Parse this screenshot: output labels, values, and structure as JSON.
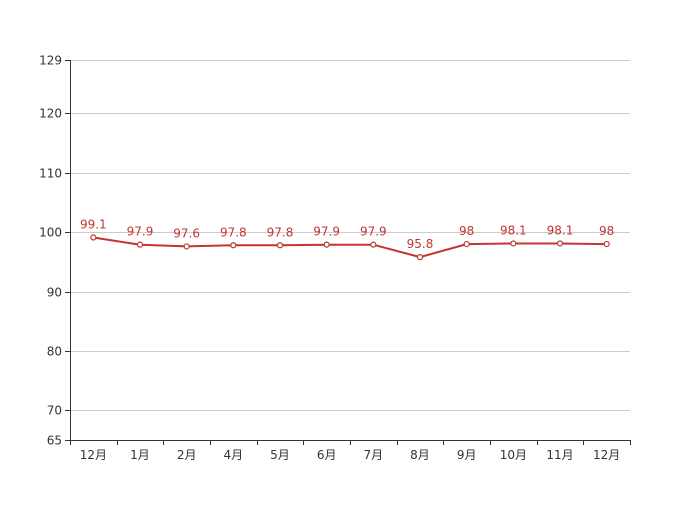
{
  "chart_data": {
    "type": "line",
    "title": "",
    "xlabel": "",
    "ylabel": "",
    "categories": [
      "12月",
      "1月",
      "2月",
      "4月",
      "5月",
      "6月",
      "7月",
      "8月",
      "9月",
      "10月",
      "11月",
      "12月"
    ],
    "series": [
      {
        "values": [
          99.1,
          97.9,
          97.6,
          97.8,
          97.8,
          97.9,
          97.9,
          95.8,
          98,
          98.1,
          98.1,
          98
        ],
        "labels": [
          "99.1",
          "97.9",
          "97.6",
          "97.8",
          "97.8",
          "97.9",
          "97.9",
          "95.8",
          "98",
          "98.1",
          "98.1",
          "98"
        ],
        "color": "#c23531"
      }
    ],
    "y_ticks": [
      129,
      120,
      110,
      100,
      90,
      80,
      70,
      65
    ],
    "y_tick_labels": [
      "129",
      "120",
      "110",
      "100",
      "90",
      "80",
      "70",
      "65"
    ],
    "ylim": [
      65,
      129
    ],
    "grid": true,
    "legend": "none",
    "colors": {
      "line": "#c23531",
      "grid": "#cccccc",
      "axis": "#333333",
      "text": "#333333"
    }
  }
}
